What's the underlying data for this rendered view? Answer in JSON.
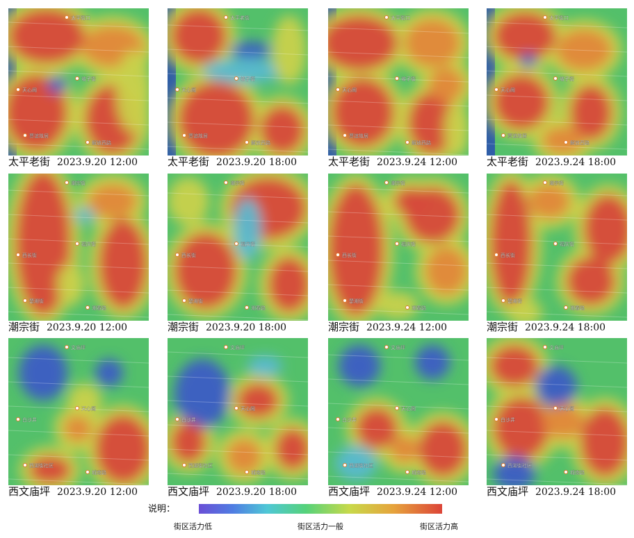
{
  "panels": [
    {
      "street": "太平老街",
      "datetime": "2023.9.20  12:00",
      "labels": [
        "太平街口",
        "天心阁",
        "坡子街",
        "贾谊故居",
        "解放西路"
      ]
    },
    {
      "street": "太平老街",
      "datetime": "2023.9.20  18:00",
      "labels": [
        "太平老街",
        "天心阁",
        "坡子街",
        "贾谊故居",
        "解放西路"
      ]
    },
    {
      "street": "太平老街",
      "datetime": "2023.9.24  12:00",
      "labels": [
        "太平街口",
        "天心阁",
        "坡子街",
        "贾谊故居",
        "解放西路"
      ]
    },
    {
      "street": "太平老街",
      "datetime": "2023.9.24  18:00",
      "labels": [
        "太平街口",
        "天心阁",
        "坡子街",
        "贾谊故居",
        "解放西路"
      ]
    },
    {
      "street": "潮宗街",
      "datetime": "2023.9.20  12:00",
      "labels": [
        "潮宗街",
        "西长街",
        "福庆街",
        "楚湘街",
        "湘春路"
      ]
    },
    {
      "street": "潮宗街",
      "datetime": "2023.9.20  18:00",
      "labels": [
        "潮宗街",
        "西长街",
        "福庆街",
        "楚湘街",
        "湘春路"
      ]
    },
    {
      "street": "潮宗街",
      "datetime": "2023.9.24  12:00",
      "labels": [
        "潮宗街",
        "西长街",
        "福庆街",
        "楚湘街",
        "湘春路"
      ]
    },
    {
      "street": "潮宗街",
      "datetime": "2023.9.24  18:00",
      "labels": [
        "潮宗街",
        "西长街",
        "福庆街",
        "楚湘街",
        "湘春路"
      ]
    },
    {
      "street": "西文庙坪",
      "datetime": "2023.9.20  12:00",
      "labels": [
        "文庙坪",
        "白沙井",
        "天心阁",
        "西湖街社区",
        "城南路"
      ]
    },
    {
      "street": "西文庙坪",
      "datetime": "2023.9.20  18:00",
      "labels": [
        "文庙坪",
        "白沙井",
        "天心阁",
        "西湖街社区",
        "城南路"
      ]
    },
    {
      "street": "西文庙坪",
      "datetime": "2023.9.24  12:00",
      "labels": [
        "文庙坪",
        "白沙井",
        "天心阁",
        "西湖街社区",
        "城南路"
      ]
    },
    {
      "street": "西文庙坪",
      "datetime": "2023.9.24  18:00",
      "labels": [
        "文庙坪",
        "白沙井",
        "天心阁",
        "西湖街社区",
        "城南路"
      ]
    }
  ],
  "legend": {
    "title": "说明：",
    "low": "街区活力低",
    "mid": "街区活力一般",
    "high": "街区活力高",
    "colors": [
      "#6a4fd6",
      "#4f7de2",
      "#4fc7d6",
      "#55d27a",
      "#c8d94a",
      "#e6a33c",
      "#dc4438"
    ]
  },
  "colors": {
    "field_green": "#53c06a",
    "field_yellow": "#c9d14b",
    "field_orange": "#e2873a",
    "field_red": "#d6483a",
    "field_blue": "#3b5cc4",
    "field_cyan": "#58b9d0",
    "river_blue": "#2f5ea8"
  }
}
